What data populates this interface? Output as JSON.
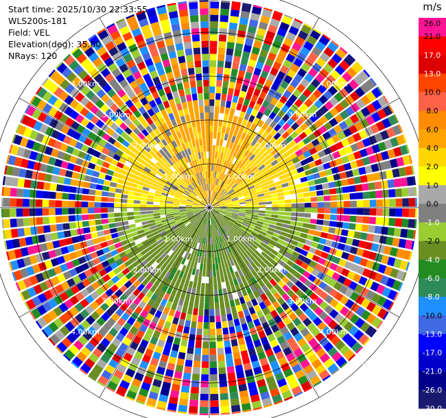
{
  "header": {
    "start_time": "Start time: 2025/10/30 22:33:55",
    "site": "WLS200s-181",
    "field": "Field: VEL",
    "elevation": "Elevation(deg): 35.00",
    "nrays": "NRays: 120"
  },
  "chart_data": {
    "type": "heatmap",
    "projection": "polar-ppi",
    "nrays": 120,
    "range_rings_km": [
      1,
      2,
      3,
      4,
      5
    ],
    "ring_labels": [
      "1.00km",
      "2.00km",
      "3.00km",
      "4.00km",
      "5.00km"
    ],
    "colorbar": {
      "unit": "m/s",
      "ticks": [
        "26.0",
        "21.0",
        "17.0",
        "13.0",
        "10.0",
        "8.0",
        "6.0",
        "4.0",
        "2.0",
        "1.0",
        "0.0",
        "-1.0",
        "-2.0",
        "-4.0",
        "-6.0",
        "-8.0",
        "-10.0",
        "-13.0",
        "-17.0",
        "-21.0",
        "-26.0",
        "-30.0"
      ],
      "colors": [
        "#ff1493",
        "#ff0000",
        "#dc0000",
        "#ff4500",
        "#ff6347",
        "#ff8c00",
        "#ffa500",
        "#ffd700",
        "#ffff00",
        "#a9a9a9",
        "#808080",
        "#9acd32",
        "#6b8e23",
        "#228b22",
        "#2e8b57",
        "#1e90ff",
        "#4169e1",
        "#0000ff",
        "#0000cd",
        "#00008b",
        "#191970"
      ]
    },
    "near_field": {
      "approach_northern_half_ms": 3,
      "recede_southern_half_ms": -2.5,
      "valid_range_km": 2.4
    }
  }
}
